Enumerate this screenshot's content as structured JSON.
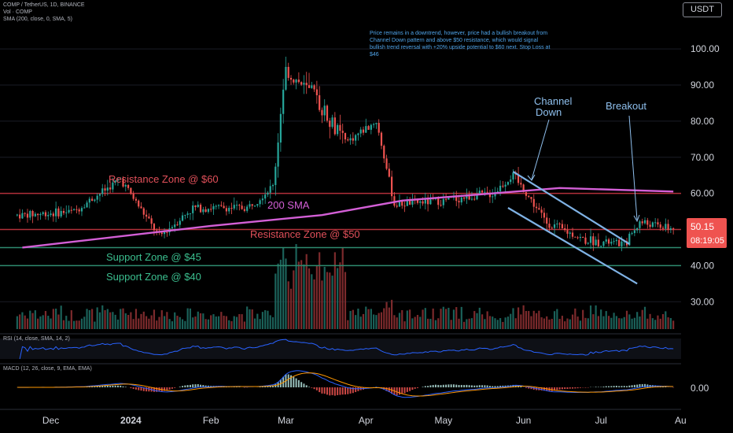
{
  "header": {
    "symbol_line": "COMP / TetherUS, 1D, BINANCE",
    "vol_line": "Vol · COMP",
    "sma_line": "SMA (200, close, 0, SMA, 5)",
    "currency": "USDT"
  },
  "annotation_text": "Price remains in a downtrend, however, price had a bullish breakout from Channel Down pattern and above $50 resistance, which would signal bullish trend reversal with +20% upside potential to $60 next. Stop Loss at $46",
  "labels": {
    "resistance_60": "Resistance Zone @ $60",
    "resistance_50": "Resistance Zone @ $50",
    "support_45": "Support Zone @ $45",
    "support_40": "Support Zone @ $40",
    "sma": "200 SMA",
    "channel_line1": "Channel",
    "channel_line2": "Down",
    "breakout": "Breakout"
  },
  "price_badge": {
    "price": "50.15",
    "countdown": "08:19:05"
  },
  "rsi_label": "RSI (14, close, SMA, 14, 2)",
  "macd_label": "MACD (12, 26, close, 9, EMA, EMA)",
  "colors": {
    "background": "#000000",
    "up": "#26a69a",
    "down": "#ef5350",
    "resistance": "#b2303a",
    "support": "#2e8b6f",
    "sma": "#d35fd6",
    "channel": "#7fb2e5",
    "rsi": "#2962ff",
    "macd": "#2962ff",
    "signal": "#ff9800"
  },
  "chart_data": {
    "type": "candlestick",
    "price_axis": {
      "ticks": [
        30,
        40,
        50,
        60,
        70,
        80,
        90,
        100
      ],
      "tick_labels": [
        "30.00",
        "40.00",
        "50.00",
        "60.00",
        "70.00",
        "80.00",
        "90.00",
        "100.00"
      ],
      "range": [
        22,
        107
      ]
    },
    "macd_axis": {
      "ticks": [
        0
      ],
      "tick_labels": [
        "0.00"
      ]
    },
    "time_axis": {
      "labels": [
        "Dec",
        "2024",
        "Feb",
        "Mar",
        "Apr",
        "May",
        "Jun",
        "Jul",
        "Au"
      ]
    },
    "horizontal_levels": [
      {
        "name": "resistance_60",
        "value": 60
      },
      {
        "name": "resistance_50",
        "value": 50
      },
      {
        "name": "support_45",
        "value": 45
      },
      {
        "name": "support_40",
        "value": 40
      }
    ],
    "key_closes": [
      {
        "date": "2023-11-20",
        "close": 54
      },
      {
        "date": "2023-12-10",
        "close": 55
      },
      {
        "date": "2023-12-28",
        "close": 64
      },
      {
        "date": "2024-01-12",
        "close": 48
      },
      {
        "date": "2024-01-25",
        "close": 56
      },
      {
        "date": "2024-02-15",
        "close": 56
      },
      {
        "date": "2024-02-25",
        "close": 62
      },
      {
        "date": "2024-03-01",
        "close": 94
      },
      {
        "date": "2024-03-12",
        "close": 87
      },
      {
        "date": "2024-03-24",
        "close": 74
      },
      {
        "date": "2024-04-05",
        "close": 80
      },
      {
        "date": "2024-04-12",
        "close": 57
      },
      {
        "date": "2024-05-01",
        "close": 58
      },
      {
        "date": "2024-05-20",
        "close": 60
      },
      {
        "date": "2024-05-28",
        "close": 65
      },
      {
        "date": "2024-06-10",
        "close": 52
      },
      {
        "date": "2024-06-25",
        "close": 47
      },
      {
        "date": "2024-07-10",
        "close": 46
      },
      {
        "date": "2024-07-16",
        "close": 52
      },
      {
        "date": "2024-07-29",
        "close": 50.15
      }
    ],
    "sma200": [
      {
        "date": "2023-11-20",
        "value": 45
      },
      {
        "date": "2024-02-01",
        "value": 51
      },
      {
        "date": "2024-03-15",
        "value": 54
      },
      {
        "date": "2024-04-15",
        "value": 58
      },
      {
        "date": "2024-05-20",
        "value": 60
      },
      {
        "date": "2024-06-15",
        "value": 61.5
      },
      {
        "date": "2024-07-29",
        "value": 60.5
      }
    ],
    "channel_down": {
      "upper": [
        {
          "date": "2024-05-28",
          "value": 66
        },
        {
          "date": "2024-07-12",
          "value": 46
        }
      ],
      "lower": [
        {
          "date": "2024-05-26",
          "value": 56
        },
        {
          "date": "2024-07-15",
          "value": 35
        }
      ]
    }
  }
}
